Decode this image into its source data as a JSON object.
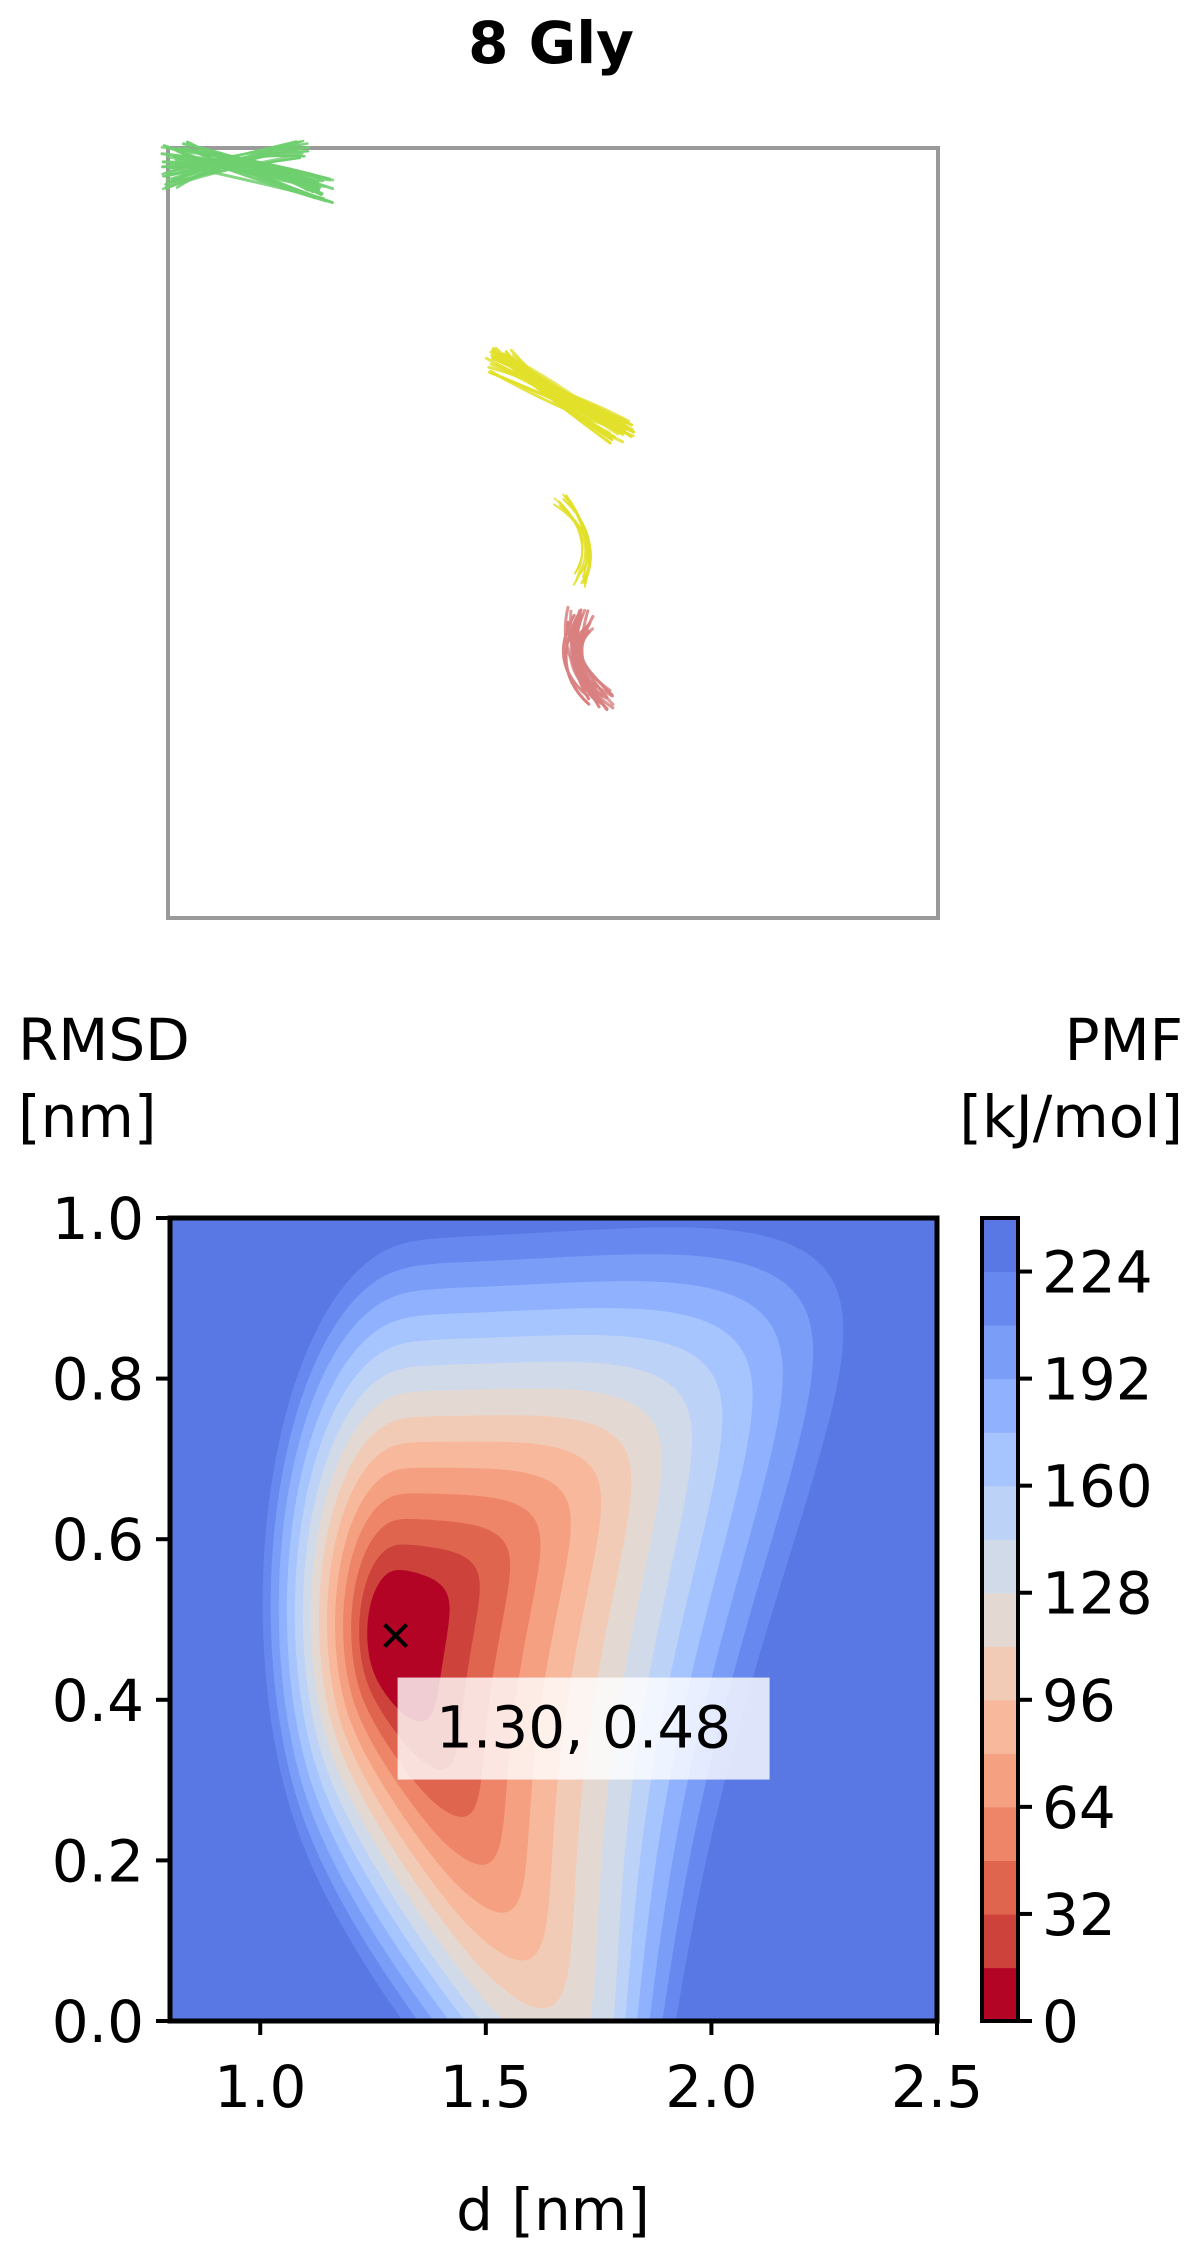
{
  "figure": {
    "title": "8 Gly"
  },
  "structure_panel": {
    "chains": [
      {
        "name": "green-chain",
        "color": "#6fcf6f"
      },
      {
        "name": "yellow-chain",
        "color": "#e2e02a"
      },
      {
        "name": "pink-chain",
        "color": "#d98080"
      }
    ]
  },
  "chart_data": {
    "type": "heatmap",
    "title": "",
    "xlabel": "d [nm]",
    "ylabel_line1": "RMSD",
    "ylabel_line2": "[nm]",
    "xlim": [
      0.8,
      2.5
    ],
    "ylim": [
      0.0,
      1.0
    ],
    "xticks": [
      1.0,
      1.5,
      2.0,
      2.5
    ],
    "xtick_labels": [
      "1.0",
      "1.5",
      "2.0",
      "2.5"
    ],
    "yticks": [
      0.0,
      0.2,
      0.4,
      0.6,
      0.8,
      1.0
    ],
    "ytick_labels": [
      "0.0",
      "0.2",
      "0.4",
      "0.6",
      "0.8",
      "1.0"
    ],
    "minimum": {
      "x": 1.3,
      "y": 0.48,
      "label": "1.30, 0.48"
    },
    "colorbar": {
      "label_line1": "PMF",
      "label_line2": "[kJ/mol]",
      "range": [
        0,
        240
      ],
      "ticks": [
        0,
        32,
        64,
        96,
        128,
        160,
        192,
        224
      ],
      "tick_labels": [
        "0",
        "32",
        "64",
        "96",
        "128",
        "160",
        "192",
        "224"
      ],
      "levels": [
        "#b40426",
        "#cd423b",
        "#e0654f",
        "#ee8468",
        "#f5a081",
        "#f7b89c",
        "#f2cbb7",
        "#e4d9d2",
        "#d1dae9",
        "#bcd2f7",
        "#a6c4fe",
        "#8fb1fe",
        "#7a9df8",
        "#6788ee",
        "#5a78e4"
      ]
    },
    "background_color": "#5a78e4"
  }
}
